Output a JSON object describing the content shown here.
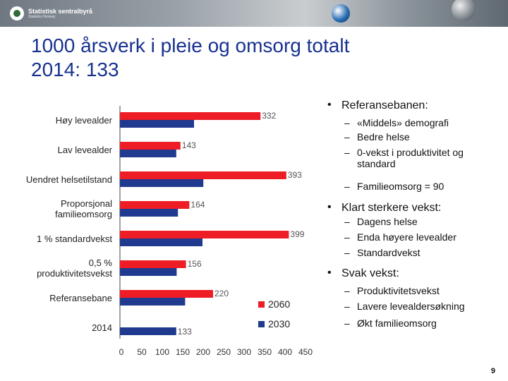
{
  "header": {
    "logo_name": "Statistisk sentralbyrå",
    "logo_sub": "Statistics Norway"
  },
  "title": {
    "line1": "1000 årsverk i pleie og omsorg totalt",
    "line2": "2014: 133"
  },
  "chart_data": {
    "type": "bar",
    "orientation": "horizontal",
    "categories": [
      "Høy levealder",
      "Lav levealder",
      "Uendret helsetilstand",
      "Proporsjonal familieomsorg",
      "1 % standardvekst",
      "0,5 % produktivitetsvekst",
      "Referansebane",
      "2014"
    ],
    "category_display": [
      "Høy levealder",
      "Lav levealder",
      "Uendret helsetilstand",
      "Proporsjonal|familieomsorg",
      "1 % standardvekst",
      "0,5 %|produktivitetsvekst",
      "Referansebane",
      "2014"
    ],
    "series": [
      {
        "name": "2060",
        "color": "#ee1c25",
        "values": [
          332,
          143,
          393,
          164,
          399,
          156,
          220,
          null
        ]
      },
      {
        "name": "2030",
        "color": "#1f3a8f",
        "values": [
          175,
          133,
          197,
          137,
          195,
          134,
          154,
          133
        ]
      }
    ],
    "data_labels": [
      "332",
      "143",
      "393",
      "164",
      "399",
      "156",
      "220",
      "133"
    ],
    "xlim": [
      0,
      450
    ],
    "x_ticks": [
      "0",
      "50",
      "100",
      "150",
      "200",
      "250",
      "300",
      "350",
      "400",
      "450"
    ],
    "legend": [
      {
        "label": "2060",
        "color": "#ee1c25"
      },
      {
        "label": "2030",
        "color": "#1f3a8f"
      }
    ],
    "legend_position": "bottom-right",
    "grid": false
  },
  "bullets": [
    {
      "text": "Referansebanen:",
      "subs": [
        "«Middels» demografi",
        "Bedre helse",
        "0-vekst i produktivitet og standard",
        "Familieomsorg = 90"
      ]
    },
    {
      "text": "Klart sterkere vekst:",
      "subs": [
        "Dagens helse",
        "Enda høyere levealder",
        "Standardvekst"
      ]
    },
    {
      "text": "Svak vekst:",
      "subs": [
        "Produktivitetsvekst",
        "Lavere levealdersøkning",
        "Økt familieomsorg"
      ]
    }
  ],
  "page_number": "9"
}
